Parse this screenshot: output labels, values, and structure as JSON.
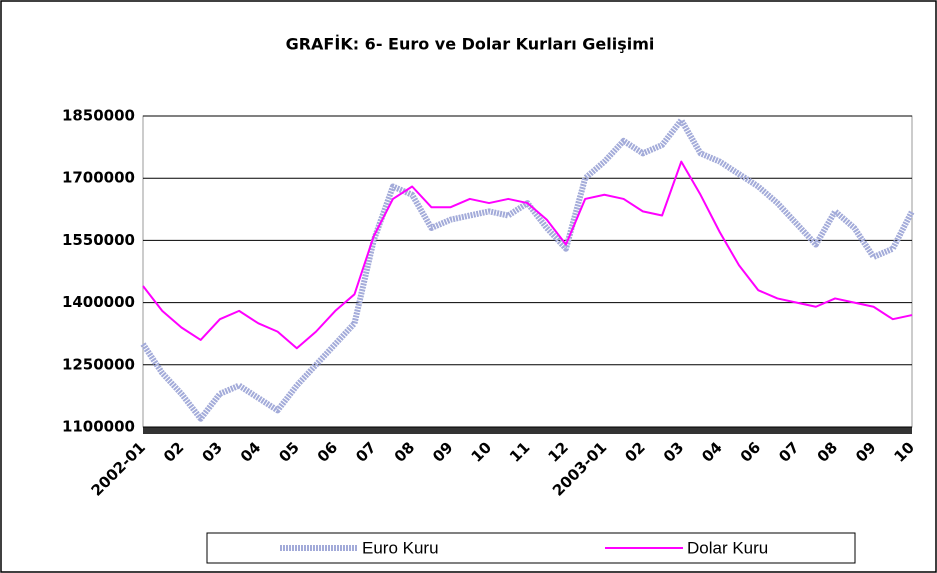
{
  "chart_data": {
    "type": "line",
    "title": "GRAFİK: 6- Euro ve Dolar Kurları Gelişimi",
    "categories": [
      "2002-01",
      null,
      "02",
      null,
      "03",
      null,
      "04",
      null,
      "05",
      null,
      "06",
      null,
      "07",
      null,
      "08",
      null,
      "09",
      null,
      "10",
      null,
      "11",
      null,
      "12",
      null,
      "2003-01",
      null,
      "02",
      null,
      "03",
      null,
      "04",
      null,
      "06",
      null,
      "07",
      null,
      "08",
      null,
      "09",
      null,
      "10"
    ],
    "series": [
      {
        "name": "Euro Kuru",
        "color": "#a3abd9",
        "values": [
          1300000,
          1230000,
          1180000,
          1120000,
          1180000,
          1200000,
          1170000,
          1140000,
          1200000,
          1250000,
          1300000,
          1350000,
          1550000,
          1680000,
          1660000,
          1580000,
          1600000,
          1610000,
          1620000,
          1610000,
          1640000,
          1580000,
          1530000,
          1700000,
          1740000,
          1790000,
          1760000,
          1780000,
          1840000,
          1760000,
          1740000,
          1710000,
          1680000,
          1640000,
          1590000,
          1540000,
          1620000,
          1580000,
          1510000,
          1530000,
          1620000
        ]
      },
      {
        "name": "Dolar Kuru",
        "color": "#ff00ff",
        "values": [
          1440000,
          1380000,
          1340000,
          1310000,
          1360000,
          1380000,
          1350000,
          1330000,
          1290000,
          1330000,
          1380000,
          1420000,
          1560000,
          1650000,
          1680000,
          1630000,
          1630000,
          1650000,
          1640000,
          1650000,
          1640000,
          1600000,
          1540000,
          1650000,
          1660000,
          1650000,
          1620000,
          1610000,
          1740000,
          1660000,
          1570000,
          1490000,
          1430000,
          1410000,
          1400000,
          1390000,
          1410000,
          1400000,
          1390000,
          1360000,
          1370000
        ]
      }
    ],
    "ylim": [
      1100000,
      1850000
    ],
    "yticks": [
      1100000,
      1250000,
      1400000,
      1550000,
      1700000,
      1850000
    ],
    "grid": true
  }
}
